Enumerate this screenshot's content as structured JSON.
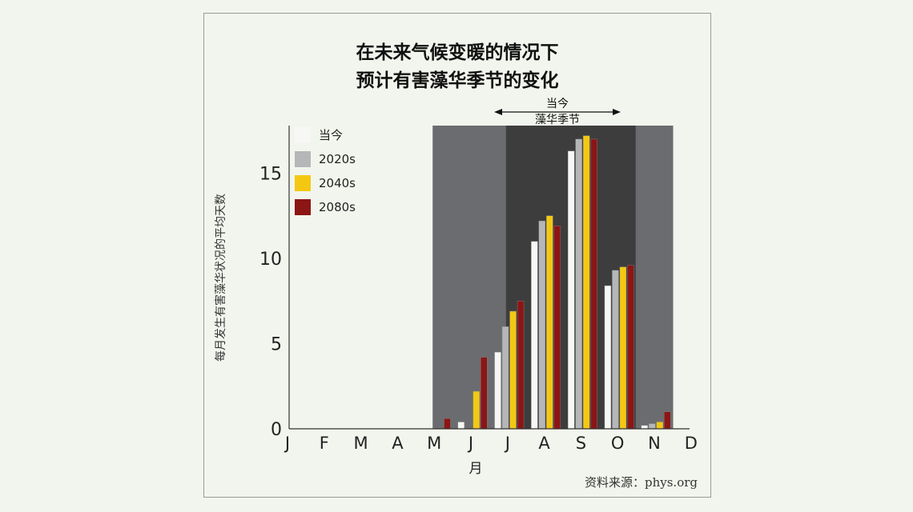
{
  "chart_data": {
    "type": "bar",
    "title_lines": [
      "在未来气候变暖的情况下",
      "预计有害藻华季节的变化"
    ],
    "ylabel": "每月发生有害藻华状况的平均天数",
    "xlabel": "月",
    "ylim": [
      0,
      18
    ],
    "yticks": [
      0,
      5,
      10,
      15
    ],
    "categories": [
      "J",
      "F",
      "M",
      "A",
      "M",
      "J",
      "J",
      "A",
      "S",
      "O",
      "N",
      "D"
    ],
    "series": [
      {
        "name": "当今",
        "color": "#f7f7f5",
        "values": [
          0,
          0,
          0,
          0,
          0,
          0.4,
          4.5,
          11.0,
          16.3,
          8.4,
          0.2,
          0
        ]
      },
      {
        "name": "2020s",
        "color": "#b5b6b8",
        "values": [
          0,
          0,
          0,
          0,
          0,
          0,
          6.0,
          12.2,
          17.0,
          9.3,
          0.3,
          0
        ]
      },
      {
        "name": "2040s",
        "color": "#f4c812",
        "values": [
          0,
          0,
          0,
          0,
          0,
          2.2,
          6.9,
          12.5,
          17.2,
          9.5,
          0.4,
          0
        ]
      },
      {
        "name": "2080s",
        "color": "#8c1515",
        "values": [
          0,
          0,
          0,
          0,
          0.6,
          4.2,
          7.5,
          11.9,
          17.0,
          9.6,
          1.0,
          0
        ]
      }
    ],
    "legend_position": "top-left",
    "shaded_regions": [
      {
        "from": "M",
        "to": "N",
        "color": "#6b6c6f"
      },
      {
        "from": "J",
        "to": "O",
        "color": "#3d3d3e"
      }
    ],
    "annotation": [
      "当今",
      "藻华季节"
    ],
    "source": "资料来源：phys.org"
  }
}
